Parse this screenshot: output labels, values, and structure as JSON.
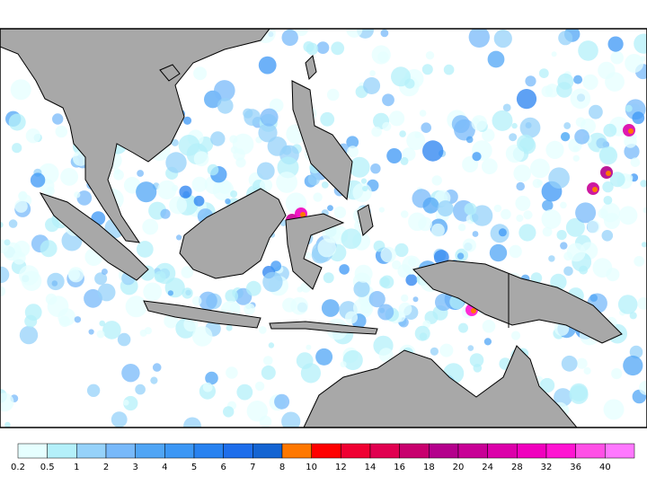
{
  "colorbar": {
    "levels": [
      0.2,
      0.5,
      1,
      2,
      3,
      4,
      5,
      6,
      7,
      8,
      10,
      12,
      14,
      16,
      18,
      20,
      24,
      28,
      32,
      36,
      40
    ],
    "colors": [
      "#e6ffff",
      "#b4f0fa",
      "#96d2fa",
      "#78b9fa",
      "#50a5f5",
      "#3c97f5",
      "#2882f0",
      "#1e6eeb",
      "#1464d2",
      "#ff7800",
      "#ff0000",
      "#f00032",
      "#e10050",
      "#c8006e",
      "#b4008c",
      "#c80096",
      "#dc00aa",
      "#f000be",
      "#ff14d2",
      "#ff50e6",
      "#ff78ff"
    ]
  }
}
